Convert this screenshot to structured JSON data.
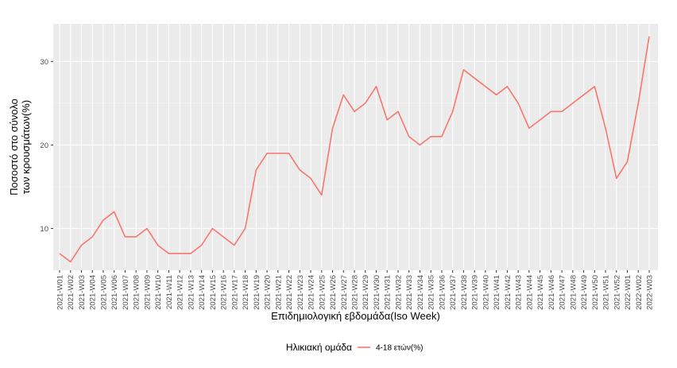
{
  "chart_data": {
    "type": "line",
    "xlabel": "Επιδημιολογική εβδομάδα(Iso Week)",
    "ylabel_lines": [
      "Ποσοστό στο σύνολο",
      "των κρουσμάτων(%)"
    ],
    "ylim": [
      5,
      34.5
    ],
    "yticks": [
      10,
      20,
      30
    ],
    "grid": true,
    "legend_position": "bottom",
    "legend_title": "Ηλικιακή ομάδα",
    "categories": [
      "2021-W01",
      "2021-W02",
      "2021-W03",
      "2021-W04",
      "2021-W05",
      "2021-W06",
      "2021-W07",
      "2021-W08",
      "2021-W09",
      "2021-W10",
      "2021-W11",
      "2021-W12",
      "2021-W13",
      "2021-W14",
      "2021-W15",
      "2021-W16",
      "2021-W17",
      "2021-W18",
      "2021-W19",
      "2021-W20",
      "2021-W21",
      "2021-W22",
      "2021-W23",
      "2021-W24",
      "2021-W25",
      "2021-W26",
      "2021-W27",
      "2021-W28",
      "2021-W29",
      "2021-W30",
      "2021-W31",
      "2021-W32",
      "2021-W33",
      "2021-W34",
      "2021-W35",
      "2021-W36",
      "2021-W37",
      "2021-W38",
      "2021-W39",
      "2021-W40",
      "2021-W41",
      "2021-W42",
      "2021-W43",
      "2021-W44",
      "2021-W45",
      "2021-W46",
      "2021-W47",
      "2021-W48",
      "2021-W49",
      "2021-W50",
      "2021-W51",
      "2021-W52",
      "2022-W01",
      "2022-W02",
      "2022-W03"
    ],
    "series": [
      {
        "name": "4-18 ετών(%)",
        "color": "#F8766D",
        "values": [
          7,
          6,
          8,
          9,
          11,
          12,
          9,
          9,
          10,
          8,
          7,
          7,
          7,
          8,
          10,
          9,
          8,
          10,
          17,
          19,
          19,
          19,
          17,
          16,
          14,
          22,
          26,
          24,
          25,
          27,
          23,
          24,
          21,
          20,
          21,
          21,
          24,
          29,
          28,
          27,
          26,
          27,
          25,
          22,
          23,
          24,
          24,
          25,
          26,
          27,
          22,
          16,
          18,
          25,
          33
        ]
      }
    ]
  }
}
